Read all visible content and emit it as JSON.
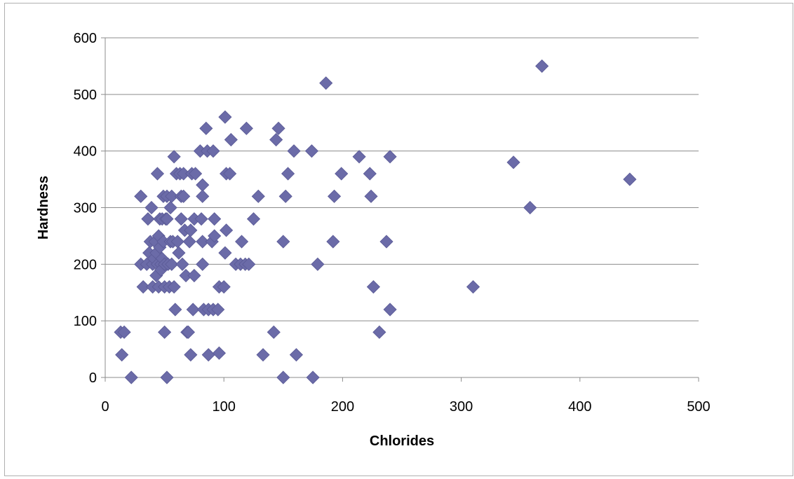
{
  "chart_data": {
    "type": "scatter",
    "title": "",
    "xlabel": "Chlorides",
    "ylabel": "Hardness",
    "xlim": [
      0,
      500
    ],
    "ylim": [
      0,
      600
    ],
    "x_ticks": [
      0,
      100,
      200,
      300,
      400,
      500
    ],
    "y_ticks": [
      0,
      100,
      200,
      300,
      400,
      500,
      600
    ],
    "grid": "horizontal",
    "legend": "none",
    "marker": "diamond",
    "marker_color": "#6b6ba8",
    "series": [
      {
        "points": [
          [
            13,
            80
          ],
          [
            16,
            80
          ],
          [
            14,
            40
          ],
          [
            22,
            0
          ],
          [
            52,
            0
          ],
          [
            150,
            0
          ],
          [
            175,
            0
          ],
          [
            30,
            200
          ],
          [
            30,
            320
          ],
          [
            32,
            160
          ],
          [
            35,
            200
          ],
          [
            36,
            280
          ],
          [
            37,
            220
          ],
          [
            38,
            240
          ],
          [
            39,
            300
          ],
          [
            40,
            160
          ],
          [
            40,
            200
          ],
          [
            41,
            210
          ],
          [
            42,
            240
          ],
          [
            43,
            220
          ],
          [
            43,
            180
          ],
          [
            44,
            360
          ],
          [
            44,
            200
          ],
          [
            45,
            250
          ],
          [
            45,
            160
          ],
          [
            46,
            280
          ],
          [
            46,
            230
          ],
          [
            47,
            200
          ],
          [
            47,
            190
          ],
          [
            48,
            280
          ],
          [
            48,
            210
          ],
          [
            49,
            320
          ],
          [
            49,
            240
          ],
          [
            50,
            80
          ],
          [
            50,
            160
          ],
          [
            50,
            200
          ],
          [
            51,
            280
          ],
          [
            52,
            280
          ],
          [
            52,
            320
          ],
          [
            53,
            200
          ],
          [
            54,
            160
          ],
          [
            55,
            300
          ],
          [
            55,
            240
          ],
          [
            56,
            320
          ],
          [
            56,
            200
          ],
          [
            57,
            240
          ],
          [
            58,
            160
          ],
          [
            58,
            390
          ],
          [
            59,
            120
          ],
          [
            60,
            360
          ],
          [
            61,
            240
          ],
          [
            62,
            220
          ],
          [
            63,
            360
          ],
          [
            64,
            280
          ],
          [
            64,
            320
          ],
          [
            65,
            200
          ],
          [
            66,
            360
          ],
          [
            66,
            320
          ],
          [
            67,
            260
          ],
          [
            68,
            180
          ],
          [
            69,
            80
          ],
          [
            70,
            80
          ],
          [
            71,
            240
          ],
          [
            72,
            260
          ],
          [
            72,
            40
          ],
          [
            73,
            360
          ],
          [
            74,
            120
          ],
          [
            75,
            280
          ],
          [
            75,
            180
          ],
          [
            76,
            360
          ],
          [
            80,
            400
          ],
          [
            81,
            280
          ],
          [
            82,
            340
          ],
          [
            82,
            320
          ],
          [
            82,
            200
          ],
          [
            82,
            240
          ],
          [
            83,
            120
          ],
          [
            85,
            440
          ],
          [
            86,
            400
          ],
          [
            87,
            120
          ],
          [
            87,
            40
          ],
          [
            90,
            240
          ],
          [
            91,
            120
          ],
          [
            91,
            400
          ],
          [
            92,
            250
          ],
          [
            92,
            280
          ],
          [
            95,
            120
          ],
          [
            96,
            160
          ],
          [
            96,
            43
          ],
          [
            100,
            160
          ],
          [
            101,
            460
          ],
          [
            101,
            220
          ],
          [
            102,
            360
          ],
          [
            102,
            260
          ],
          [
            105,
            360
          ],
          [
            106,
            420
          ],
          [
            110,
            200
          ],
          [
            114,
            200
          ],
          [
            115,
            240
          ],
          [
            118,
            200
          ],
          [
            119,
            440
          ],
          [
            121,
            200
          ],
          [
            125,
            280
          ],
          [
            129,
            320
          ],
          [
            133,
            40
          ],
          [
            142,
            80
          ],
          [
            144,
            420
          ],
          [
            146,
            440
          ],
          [
            150,
            240
          ],
          [
            152,
            320
          ],
          [
            154,
            360
          ],
          [
            159,
            400
          ],
          [
            161,
            40
          ],
          [
            174,
            400
          ],
          [
            179,
            200
          ],
          [
            186,
            520
          ],
          [
            192,
            240
          ],
          [
            193,
            320
          ],
          [
            199,
            360
          ],
          [
            214,
            390
          ],
          [
            223,
            360
          ],
          [
            224,
            320
          ],
          [
            226,
            160
          ],
          [
            231,
            80
          ],
          [
            237,
            240
          ],
          [
            240,
            390
          ],
          [
            240,
            120
          ],
          [
            310,
            160
          ],
          [
            344,
            380
          ],
          [
            358,
            300
          ],
          [
            368,
            550
          ],
          [
            442,
            350
          ]
        ]
      }
    ]
  }
}
